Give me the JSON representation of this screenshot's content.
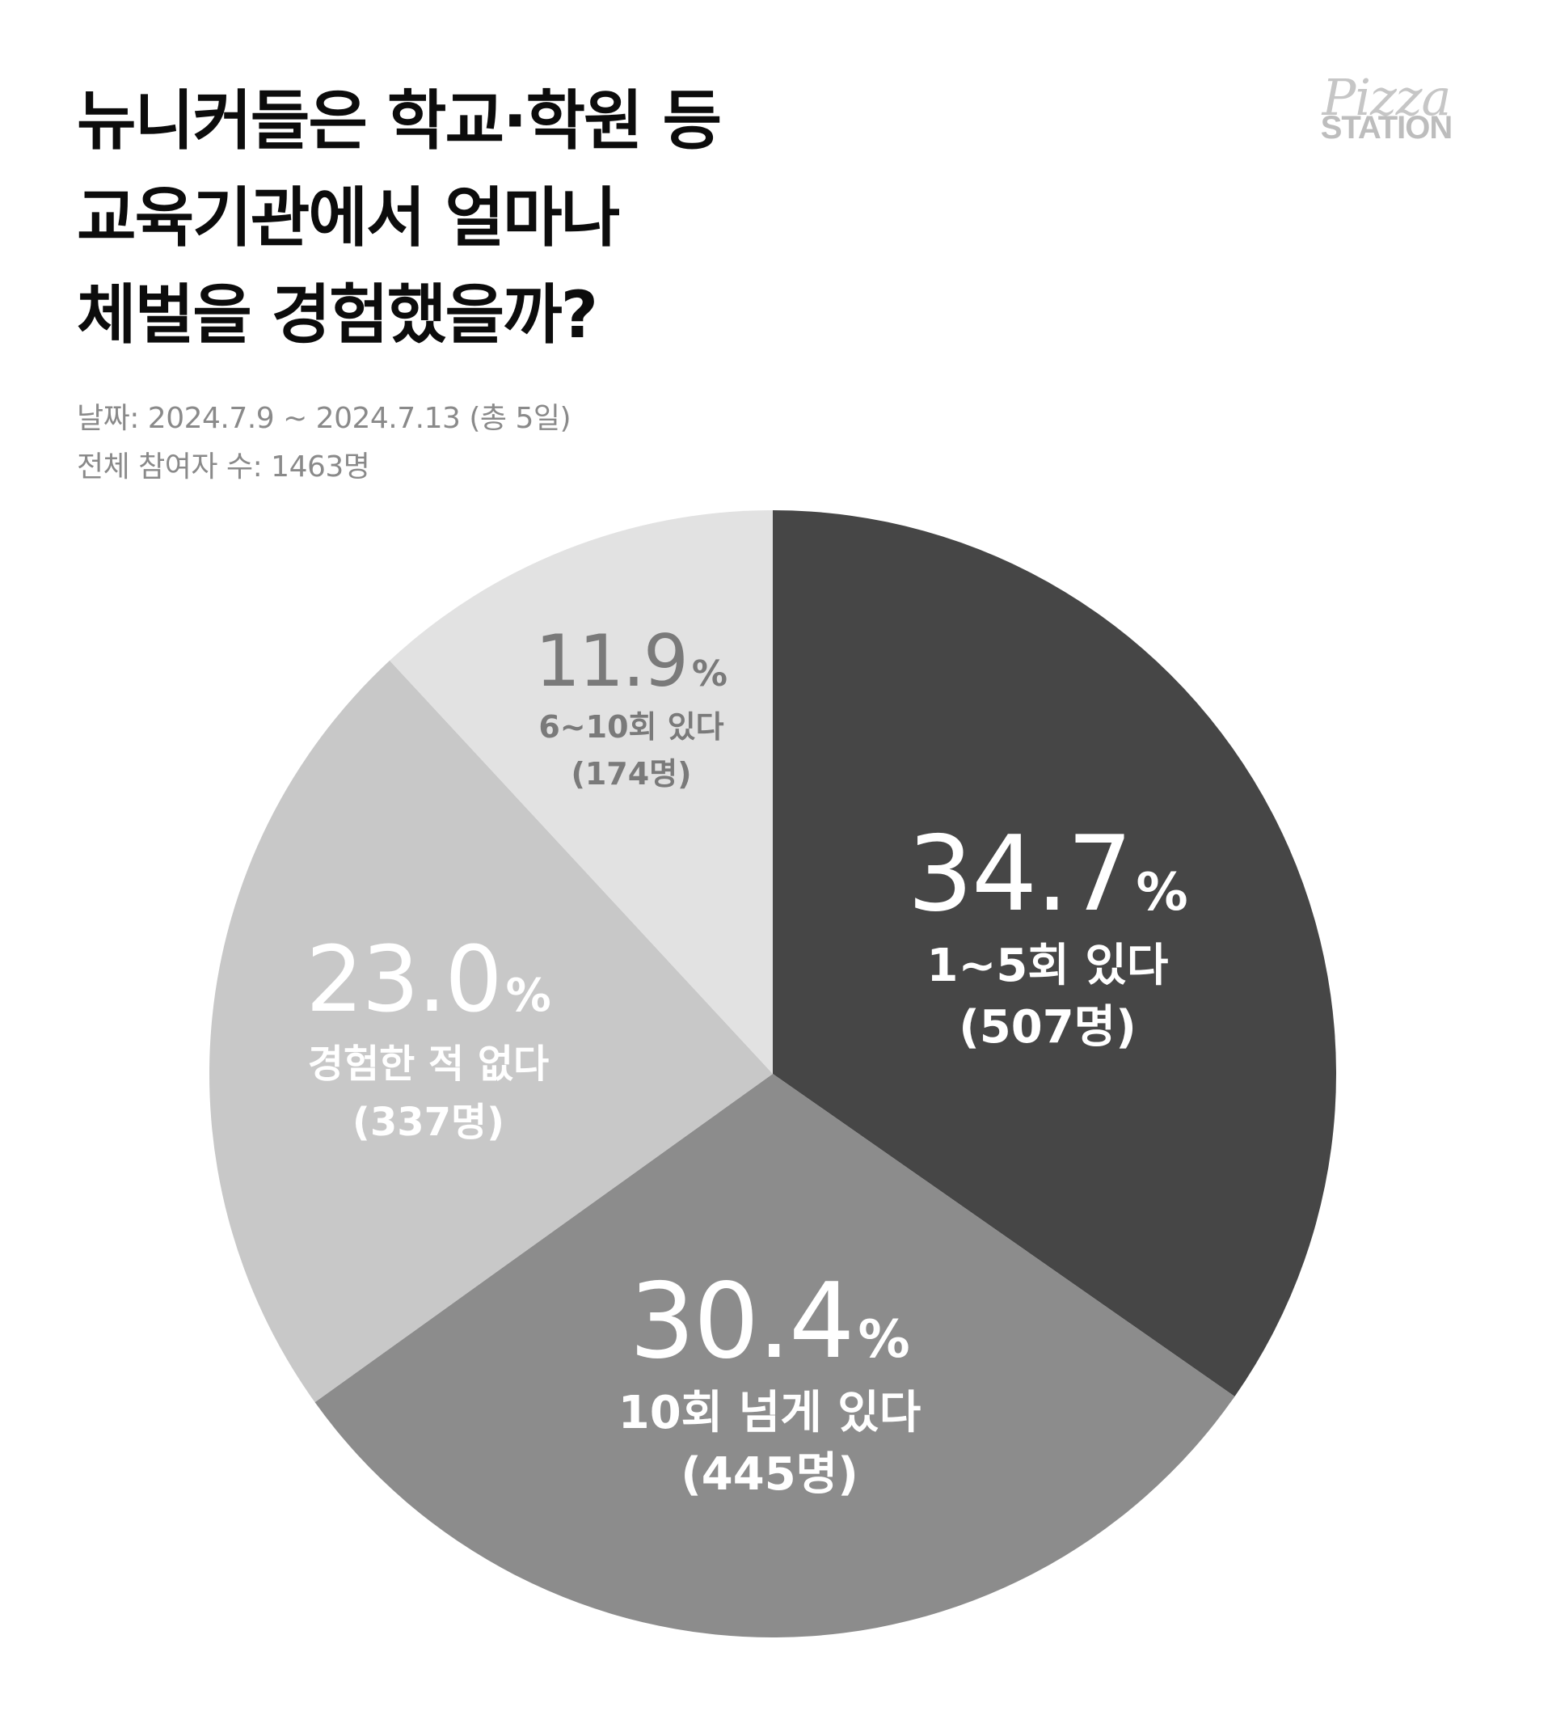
{
  "title_lines": [
    "뉴니커들은 학교·학원 등",
    "교육기관에서 얼마나",
    "체벌을 경험했을까?"
  ],
  "meta": {
    "date": "날짜: 2024.7.9 ~ 2024.7.13 (총 5일)",
    "participants": "전체 참여자 수: 1463명"
  },
  "logo": {
    "script": "Pizza",
    "word": "STATION"
  },
  "chart_data": {
    "type": "pie",
    "start": "top, clockwise",
    "slices": [
      {
        "label": "1~5회 있다",
        "count": "(507명)",
        "percent": 34.7,
        "percent_text": "34.7",
        "color": "#464646",
        "text_color": "#ffffff"
      },
      {
        "label": "10회 넘게 있다",
        "count": "(445명)",
        "percent": 30.4,
        "percent_text": "30.4",
        "color": "#8c8c8c",
        "text_color": "#ffffff"
      },
      {
        "label": "경험한 적 없다",
        "count": "(337명)",
        "percent": 23.0,
        "percent_text": "23.0",
        "color": "#c8c8c8",
        "text_color": "#ffffff"
      },
      {
        "label": "6~10회 있다",
        "count": "(174명)",
        "percent": 11.9,
        "percent_text": "11.9",
        "color": "#e2e2e2",
        "text_color": "#7a7a7a"
      }
    ],
    "percent_sign": "%"
  }
}
